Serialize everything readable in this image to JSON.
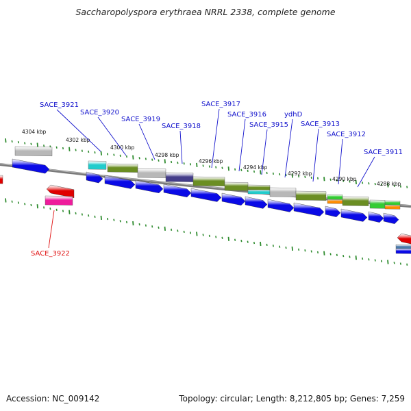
{
  "title": "Saccharopolyspora erythraea NRRL 2338, complete genome",
  "footer": {
    "accession": "Accession: NC_009142",
    "info": "Topology: circular; Length: 8,212,805 bp; Genes: 7,259"
  },
  "colors": {
    "backbone": "#7a7a7a",
    "tick": "#2e8b2e",
    "label_blue": "#1010cc",
    "label_red": "#e01010",
    "cds_blue": "#0a0ae6",
    "cds_red": "#e00000",
    "cds_magenta": "#ee1c9c",
    "cds_cyan": "#22cccc",
    "cds_olive": "#6b8e23",
    "cds_grey": "#b8b8b8",
    "cds_indigo": "#443d8a",
    "cds_green": "#33cc33",
    "cds_orange": "#ff8c00",
    "cds_steel": "#4a7aaa"
  },
  "kbp_labels": [
    "4304 kbp",
    "4302 kbp",
    "4300 kbp",
    "4298 kbp",
    "4296 kbp",
    "4294 kbp",
    "4292 kbp",
    "4290 kbp",
    "4288 kbp"
  ],
  "gene_labels": [
    {
      "text": "SACE_3921",
      "color": "label_blue"
    },
    {
      "text": "SACE_3920",
      "color": "label_blue"
    },
    {
      "text": "SACE_3919",
      "color": "label_blue"
    },
    {
      "text": "SACE_3918",
      "color": "label_blue"
    },
    {
      "text": "SACE_3917",
      "color": "label_blue"
    },
    {
      "text": "SACE_3916",
      "color": "label_blue"
    },
    {
      "text": "SACE_3915",
      "color": "label_blue"
    },
    {
      "text": "ydhD",
      "color": "label_blue"
    },
    {
      "text": "SACE_3913",
      "color": "label_blue"
    },
    {
      "text": "SACE_3912",
      "color": "label_blue"
    },
    {
      "text": "SACE_3911",
      "color": "label_blue"
    },
    {
      "text": "SACE_3922",
      "color": "label_red"
    }
  ]
}
